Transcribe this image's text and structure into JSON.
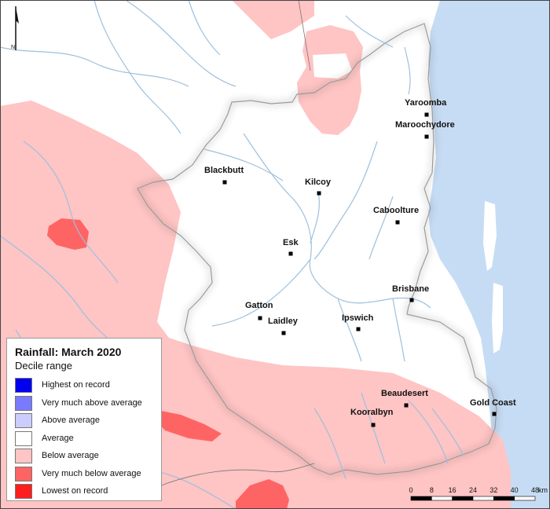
{
  "legend": {
    "title": "Rainfall: March 2020",
    "subtitle": "Decile range",
    "items": [
      {
        "label": "Highest on record",
        "color": "#0000ee"
      },
      {
        "label": "Very much above average",
        "color": "#7a7aff"
      },
      {
        "label": "Above average",
        "color": "#ccccff"
      },
      {
        "label": "Average",
        "color": "#ffffff"
      },
      {
        "label": "Below average",
        "color": "#ffc4c4"
      },
      {
        "label": "Very much below average",
        "color": "#ff6464"
      },
      {
        "label": "Lowest on record",
        "color": "#ff1e1e"
      }
    ]
  },
  "towns": [
    {
      "name": "Yaroomba"
    },
    {
      "name": "Maroochydore"
    },
    {
      "name": "Blackbutt"
    },
    {
      "name": "Kilcoy"
    },
    {
      "name": "Caboolture"
    },
    {
      "name": "Esk"
    },
    {
      "name": "Brisbane"
    },
    {
      "name": "Gatton"
    },
    {
      "name": "Laidley"
    },
    {
      "name": "Ipswich"
    },
    {
      "name": "Beaudesert"
    },
    {
      "name": "Kooralbyn"
    },
    {
      "name": "Gold Coast"
    }
  ],
  "scale_bar": {
    "ticks": [
      "0",
      "8",
      "16",
      "24",
      "32",
      "40",
      "48"
    ],
    "unit": "km"
  },
  "north_arrow": {
    "label": "N",
    "icon": "north-arrow-icon"
  },
  "colors": {
    "ocean": "#c6dcf4",
    "below_average": "#ffc4c4",
    "very_much_below_average": "#ff6464",
    "river": "#9ec0dc"
  }
}
